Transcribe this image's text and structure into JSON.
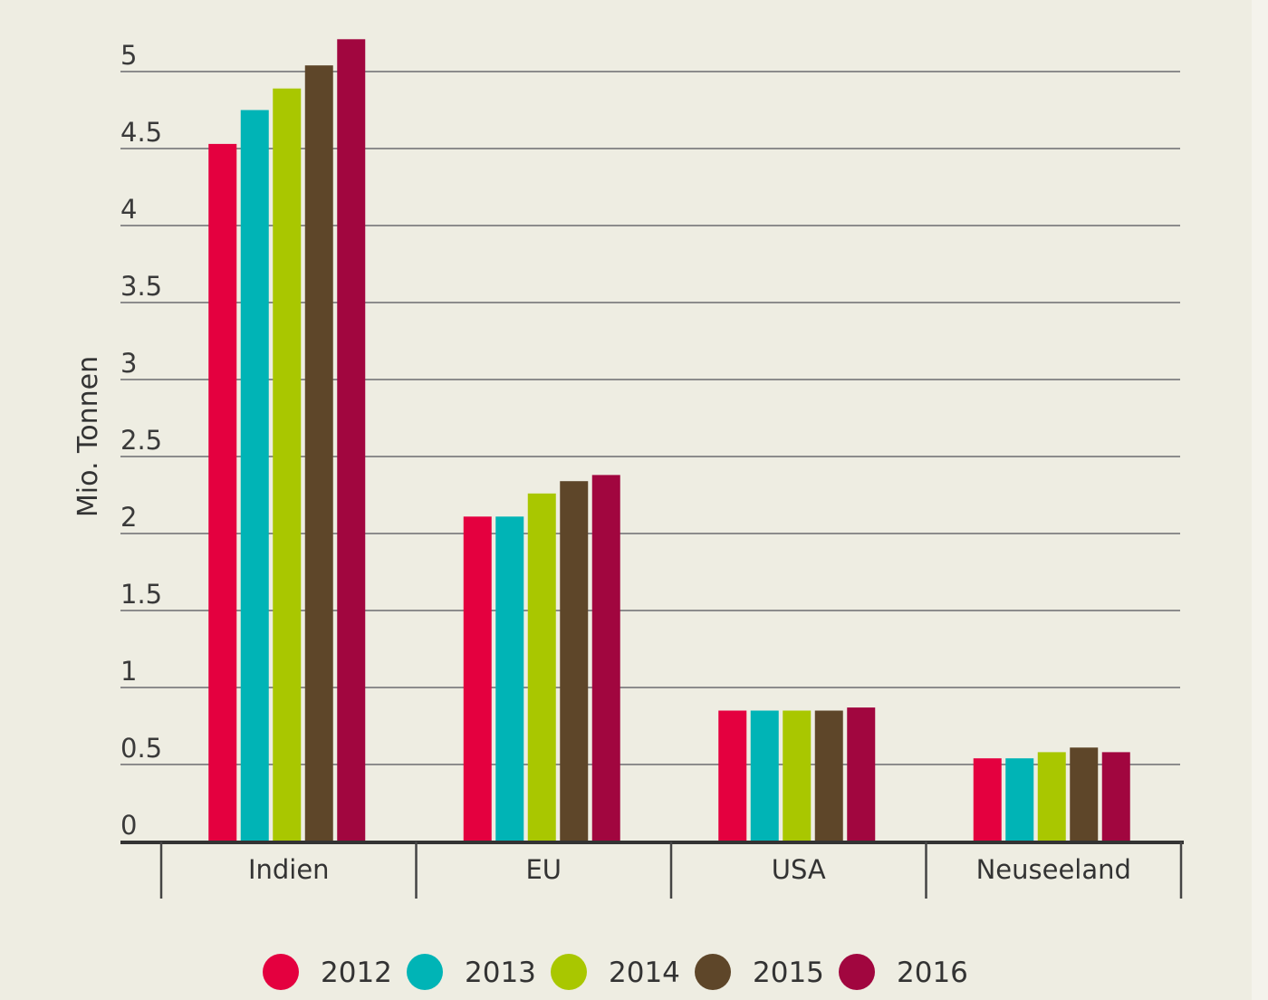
{
  "chart_data": {
    "type": "bar",
    "title": "",
    "xlabel": "",
    "ylabel": "Mio. Tonnen",
    "ylim": [
      0,
      5
    ],
    "yticks": [
      "0",
      "0.5",
      "1",
      "1.5",
      "2",
      "2.5",
      "3",
      "3.5",
      "4",
      "4.5",
      "5"
    ],
    "ytick_values": [
      0,
      0.5,
      1,
      1.5,
      2,
      2.5,
      3,
      3.5,
      4,
      4.5,
      5
    ],
    "grid": true,
    "legend_position": "bottom",
    "categories": [
      "Indien",
      "EU",
      "USA",
      "Neuseeland"
    ],
    "series": [
      {
        "name": "2012",
        "color": "#e4003f",
        "values": [
          4.53,
          2.11,
          0.85,
          0.54
        ]
      },
      {
        "name": "2013",
        "color": "#00b4b6",
        "values": [
          4.75,
          2.11,
          0.85,
          0.54
        ]
      },
      {
        "name": "2014",
        "color": "#a9c700",
        "values": [
          4.89,
          2.26,
          0.85,
          0.58
        ]
      },
      {
        "name": "2015",
        "color": "#5e4629",
        "values": [
          5.04,
          2.34,
          0.85,
          0.61
        ]
      },
      {
        "name": "2016",
        "color": "#a1063f",
        "values": [
          5.21,
          2.38,
          0.87,
          0.58
        ]
      }
    ]
  }
}
